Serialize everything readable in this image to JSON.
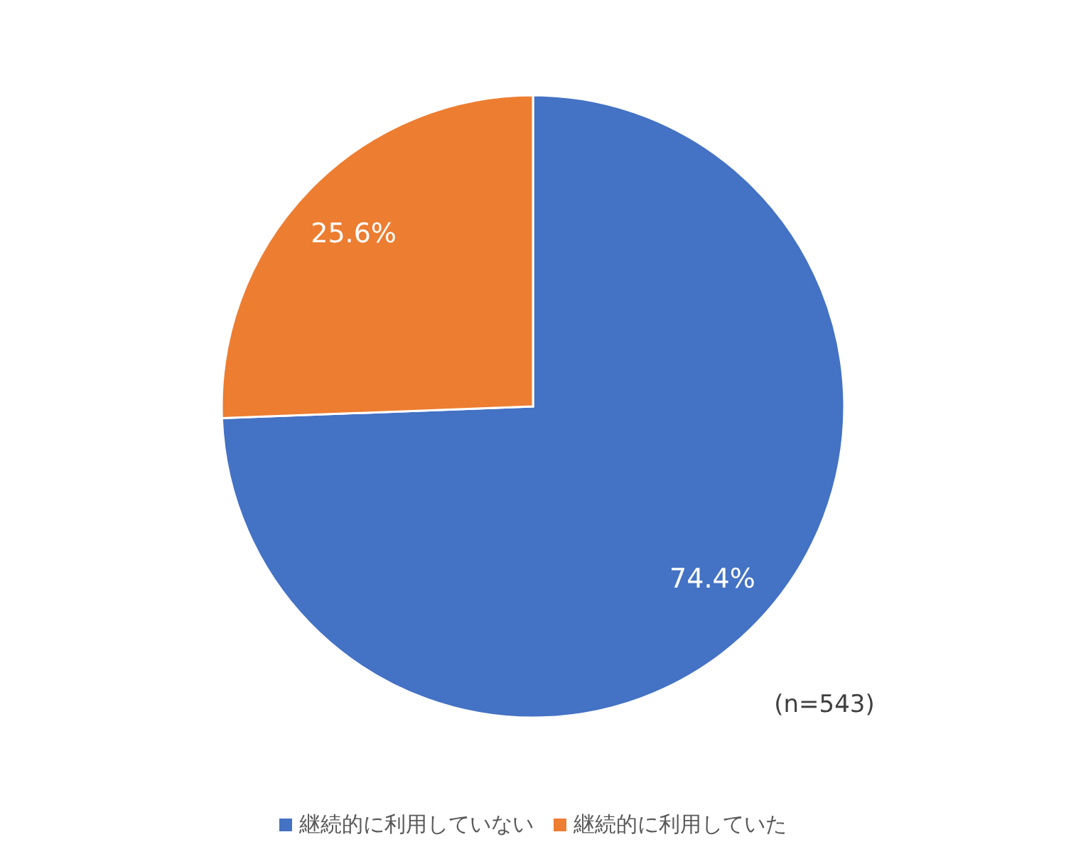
{
  "chart_data": {
    "type": "pie",
    "categories": [
      "継続的に利用していない",
      "継続的に利用していた"
    ],
    "values": [
      74.4,
      25.6
    ],
    "colors": [
      "#4472c4",
      "#ed7d31"
    ],
    "value_labels": [
      "74.4%",
      "25.6%"
    ],
    "legend": "bottom",
    "annotations": [
      "(n=543)"
    ]
  }
}
